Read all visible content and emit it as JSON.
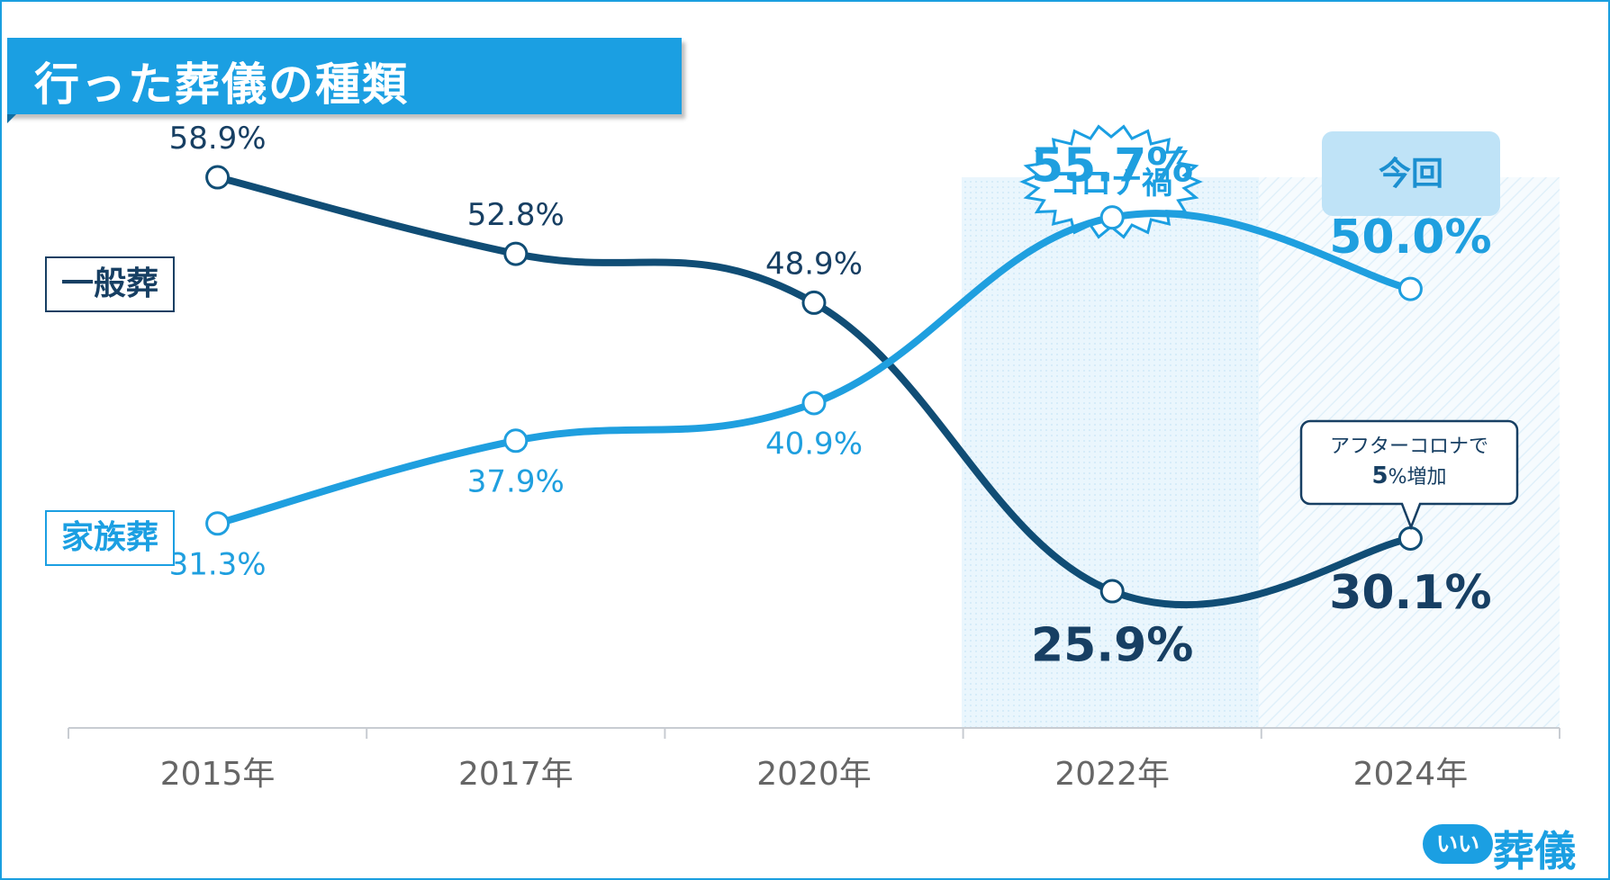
{
  "title": "行った葬儀の種類",
  "legend": {
    "general": "一般葬",
    "family": "家族葬"
  },
  "highlight": {
    "covid_label": "コロナ禍",
    "current_label": "今回"
  },
  "callout": {
    "line1": "アフターコロナで",
    "value": "5",
    "suffix": "%増加"
  },
  "logo": {
    "mark": "いい",
    "word": "葬儀"
  },
  "colors": {
    "general": "#104d75",
    "family": "#1f9fdf",
    "accent": "#1b9fe2",
    "dark_label": "#173f63"
  },
  "chart_data": {
    "type": "line",
    "title": "行った葬儀の種類",
    "categories": [
      "2015年",
      "2017年",
      "2020年",
      "2022年",
      "2024年"
    ],
    "series": [
      {
        "name": "一般葬",
        "values": [
          58.9,
          52.8,
          48.9,
          25.9,
          30.1
        ],
        "labels": [
          "58.9%",
          "52.8%",
          "48.9%",
          "25.9%",
          "30.1%"
        ]
      },
      {
        "name": "家族葬",
        "values": [
          31.3,
          37.9,
          40.9,
          55.7,
          50.0
        ],
        "labels": [
          "31.3%",
          "37.9%",
          "40.9%",
          "55.7%",
          "50.0%"
        ]
      }
    ],
    "ylim": [
      15,
      65
    ],
    "xlabel": "",
    "ylabel": "",
    "grid": false,
    "legend": "left"
  }
}
